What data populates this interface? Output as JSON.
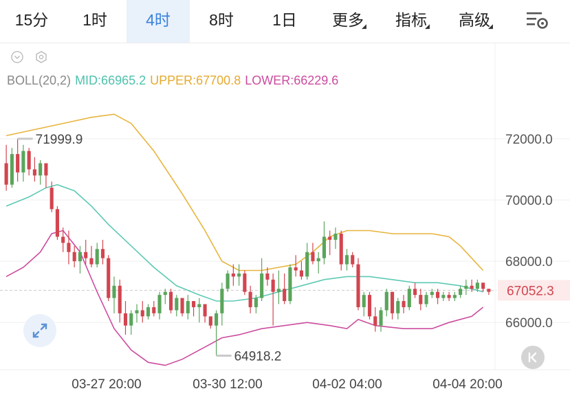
{
  "tabs": [
    {
      "label": "15分",
      "active": false,
      "dropdown": false
    },
    {
      "label": "1时",
      "active": false,
      "dropdown": false
    },
    {
      "label": "4时",
      "active": true,
      "dropdown": false
    },
    {
      "label": "8时",
      "active": false,
      "dropdown": false
    },
    {
      "label": "1日",
      "active": false,
      "dropdown": false
    },
    {
      "label": "更多",
      "active": false,
      "dropdown": true
    },
    {
      "label": "指标",
      "active": false,
      "dropdown": true
    },
    {
      "label": "高级",
      "active": false,
      "dropdown": true
    }
  ],
  "indicator": {
    "name": "BOLL(20,2)",
    "mid": "MID:66965.2",
    "upper": "UPPER:67700.8",
    "lower": "LOWER:66229.6"
  },
  "colors": {
    "up": "#5aa55c",
    "down": "#d2454f",
    "mid": "#5ec9b4",
    "upper": "#e7b43c",
    "lower": "#cc4c9e",
    "active_tab": "#3a82dc",
    "price_label_bg": "#fdeaea"
  },
  "icons": [
    "chevron-down-circle-icon",
    "hexagon-settings-icon",
    "chart-settings-icon",
    "expand-arrows-icon",
    "back-to-latest-icon"
  ],
  "chart_data": {
    "type": "candlestick",
    "title": "",
    "y_ticks": [
      "72000.0",
      "70000.0",
      "68000.0",
      "66000.0"
    ],
    "y_tick_values": [
      72000,
      70000,
      68000,
      66000
    ],
    "x_ticks": [
      "03-27 20:00",
      "03-30 12:00",
      "04-02 04:00",
      "04-04 20:00"
    ],
    "ylim": [
      64300,
      73500
    ],
    "current_price": "67052.3",
    "current_price_value": 67052.3,
    "high_marker": {
      "label": "71999.9",
      "value": 71999.9
    },
    "low_marker": {
      "label": "64918.2",
      "value": 64918.2
    },
    "candles": [
      [
        71200,
        71800,
        70300,
        70500
      ],
      [
        70500,
        71700,
        70400,
        71500
      ],
      [
        71500,
        72000,
        70600,
        70900
      ],
      [
        70900,
        71800,
        70600,
        71600
      ],
      [
        71600,
        71700,
        70800,
        71000
      ],
      [
        71000,
        71400,
        70600,
        70800
      ],
      [
        70800,
        71300,
        70500,
        71200
      ],
      [
        71200,
        71200,
        70400,
        70800
      ],
      [
        70400,
        70600,
        69600,
        69700
      ],
      [
        69700,
        69800,
        68700,
        68800
      ],
      [
        68800,
        69100,
        68300,
        68600
      ],
      [
        68600,
        69000,
        67900,
        68300
      ],
      [
        68300,
        68500,
        67800,
        68000
      ],
      [
        68000,
        68500,
        67600,
        68300
      ],
      [
        68300,
        68700,
        67900,
        68100
      ],
      [
        68100,
        68500,
        67800,
        67900
      ],
      [
        67900,
        68600,
        67800,
        68400
      ],
      [
        68400,
        68700,
        67900,
        68100
      ],
      [
        68100,
        68200,
        66700,
        66800
      ],
      [
        66800,
        67500,
        66300,
        67200
      ],
      [
        67200,
        67400,
        66000,
        66300
      ],
      [
        66300,
        66700,
        65600,
        65900
      ],
      [
        65900,
        66400,
        65600,
        66300
      ],
      [
        66300,
        66600,
        66000,
        66400
      ],
      [
        66400,
        66700,
        66000,
        66200
      ],
      [
        66200,
        66600,
        66100,
        66500
      ],
      [
        66500,
        66700,
        66200,
        66300
      ],
      [
        66300,
        67000,
        66100,
        66900
      ],
      [
        66900,
        67100,
        66600,
        67000
      ],
      [
        67000,
        67100,
        66300,
        66400
      ],
      [
        66400,
        66900,
        66200,
        66800
      ],
      [
        66800,
        66800,
        66200,
        66300
      ],
      [
        66300,
        66900,
        66100,
        66700
      ],
      [
        66700,
        66700,
        66200,
        66500
      ],
      [
        66500,
        66800,
        66000,
        66600
      ],
      [
        66600,
        66600,
        66000,
        66200
      ],
      [
        66200,
        66200,
        65800,
        65900
      ],
      [
        65900,
        66400,
        64918,
        66300
      ],
      [
        66300,
        67300,
        65900,
        67100
      ],
      [
        67100,
        67700,
        67000,
        67600
      ],
      [
        67600,
        67900,
        67200,
        67500
      ],
      [
        67500,
        67900,
        67200,
        67600
      ],
      [
        67600,
        67700,
        66900,
        67000
      ],
      [
        67000,
        67200,
        66300,
        66500
      ],
      [
        66500,
        66900,
        66300,
        66800
      ],
      [
        66800,
        68100,
        66700,
        67600
      ],
      [
        67600,
        67800,
        67200,
        67400
      ],
      [
        67400,
        67600,
        65900,
        67000
      ],
      [
        67000,
        67700,
        66600,
        67100
      ],
      [
        67100,
        67600,
        66600,
        66700
      ],
      [
        66700,
        67900,
        66600,
        67800
      ],
      [
        67800,
        68200,
        67500,
        67700
      ],
      [
        67700,
        68000,
        67400,
        67500
      ],
      [
        67500,
        68600,
        67400,
        68300
      ],
      [
        68300,
        68600,
        67900,
        68000
      ],
      [
        68000,
        68300,
        67600,
        68100
      ],
      [
        68100,
        69300,
        67900,
        68800
      ],
      [
        68800,
        69000,
        68200,
        68700
      ],
      [
        68700,
        69100,
        68400,
        68900
      ],
      [
        68900,
        69000,
        67700,
        67900
      ],
      [
        67900,
        68400,
        67700,
        68200
      ],
      [
        68200,
        68300,
        67800,
        67900
      ],
      [
        67900,
        68100,
        66400,
        66500
      ],
      [
        66500,
        67000,
        66200,
        66900
      ],
      [
        66900,
        67000,
        66100,
        66200
      ],
      [
        66200,
        66500,
        65700,
        65900
      ],
      [
        65900,
        66500,
        65700,
        66400
      ],
      [
        66400,
        67100,
        66200,
        67000
      ],
      [
        67000,
        67000,
        66100,
        66300
      ],
      [
        66300,
        66800,
        66100,
        66700
      ],
      [
        66700,
        66900,
        66300,
        66500
      ],
      [
        66500,
        67200,
        66400,
        67100
      ],
      [
        67100,
        67300,
        66800,
        66900
      ],
      [
        66900,
        67100,
        66400,
        66600
      ],
      [
        66600,
        67000,
        66500,
        66900
      ],
      [
        66900,
        67100,
        66800,
        67000
      ],
      [
        67000,
        67100,
        66600,
        66800
      ],
      [
        66800,
        67000,
        66700,
        66900
      ],
      [
        66900,
        67000,
        66700,
        66800
      ],
      [
        66800,
        67000,
        66700,
        66900
      ],
      [
        66900,
        67200,
        66800,
        67100
      ],
      [
        67100,
        67400,
        66900,
        67200
      ],
      [
        67200,
        67400,
        67000,
        67100
      ],
      [
        67100,
        67400,
        67000,
        67300
      ],
      [
        67300,
        67300,
        67000,
        67100
      ],
      [
        67100,
        67100,
        66900,
        67000
      ]
    ],
    "upper_band": [
      [
        0,
        72100
      ],
      [
        5,
        72300
      ],
      [
        10,
        72500
      ],
      [
        15,
        72700
      ],
      [
        19,
        72800
      ],
      [
        22,
        72500
      ],
      [
        26,
        71600
      ],
      [
        31,
        70200
      ],
      [
        35,
        69000
      ],
      [
        38,
        68000
      ],
      [
        41,
        67700
      ],
      [
        45,
        67700
      ],
      [
        48,
        67800
      ],
      [
        51,
        67900
      ],
      [
        54,
        68300
      ],
      [
        57,
        68800
      ],
      [
        60,
        69000
      ],
      [
        64,
        69000
      ],
      [
        68,
        68900
      ],
      [
        72,
        68900
      ],
      [
        75,
        68900
      ],
      [
        78,
        68800
      ],
      [
        80,
        68500
      ],
      [
        82,
        68100
      ],
      [
        84,
        67700
      ]
    ],
    "mid_band": [
      [
        0,
        69800
      ],
      [
        4,
        70100
      ],
      [
        7,
        70400
      ],
      [
        9,
        70500
      ],
      [
        12,
        70300
      ],
      [
        15,
        69800
      ],
      [
        18,
        69200
      ],
      [
        22,
        68500
      ],
      [
        26,
        67800
      ],
      [
        30,
        67200
      ],
      [
        34,
        66900
      ],
      [
        37,
        66700
      ],
      [
        40,
        66700
      ],
      [
        44,
        66800
      ],
      [
        48,
        67000
      ],
      [
        52,
        67200
      ],
      [
        56,
        67400
      ],
      [
        60,
        67500
      ],
      [
        64,
        67500
      ],
      [
        68,
        67400
      ],
      [
        72,
        67300
      ],
      [
        76,
        67300
      ],
      [
        80,
        67200
      ],
      [
        84,
        67000
      ]
    ],
    "lower_band": [
      [
        0,
        67500
      ],
      [
        3,
        67800
      ],
      [
        6,
        68300
      ],
      [
        8,
        68900
      ],
      [
        10,
        69000
      ],
      [
        13,
        68300
      ],
      [
        16,
        67000
      ],
      [
        19,
        65800
      ],
      [
        22,
        65100
      ],
      [
        25,
        64700
      ],
      [
        28,
        64600
      ],
      [
        31,
        64800
      ],
      [
        35,
        65200
      ],
      [
        38,
        65500
      ],
      [
        41,
        65600
      ],
      [
        45,
        65800
      ],
      [
        49,
        65900
      ],
      [
        53,
        66000
      ],
      [
        57,
        65900
      ],
      [
        60,
        65800
      ],
      [
        62,
        66100
      ],
      [
        65,
        65900
      ],
      [
        70,
        65800
      ],
      [
        75,
        65800
      ],
      [
        78,
        66000
      ],
      [
        82,
        66200
      ],
      [
        84,
        66500
      ]
    ]
  }
}
